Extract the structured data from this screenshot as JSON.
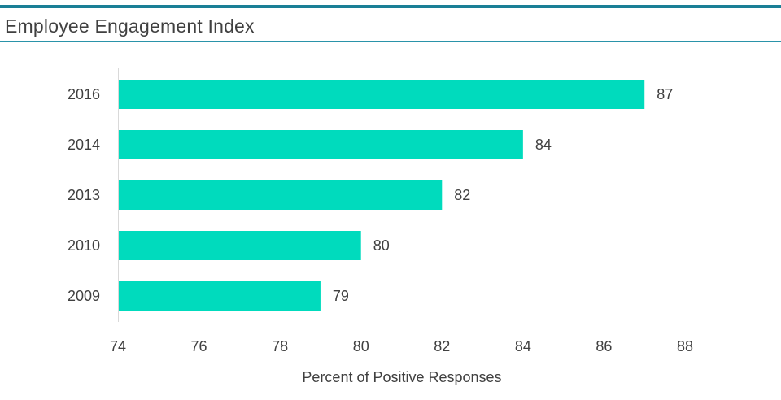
{
  "chart_data": {
    "type": "bar",
    "orientation": "horizontal",
    "title": "Employee Engagement Index",
    "categories": [
      "2016",
      "2014",
      "2013",
      "2010",
      "2009"
    ],
    "values": [
      87,
      84,
      82,
      80,
      79
    ],
    "xlabel": "Percent of Positive Responses",
    "ylabel": "",
    "xlim": [
      74,
      88
    ],
    "xticks": [
      74,
      76,
      78,
      80,
      82,
      84,
      86,
      88
    ],
    "grid": false,
    "data_labels": true,
    "bar_color": "#00dbbd",
    "accent_color": "#1a7f96"
  }
}
